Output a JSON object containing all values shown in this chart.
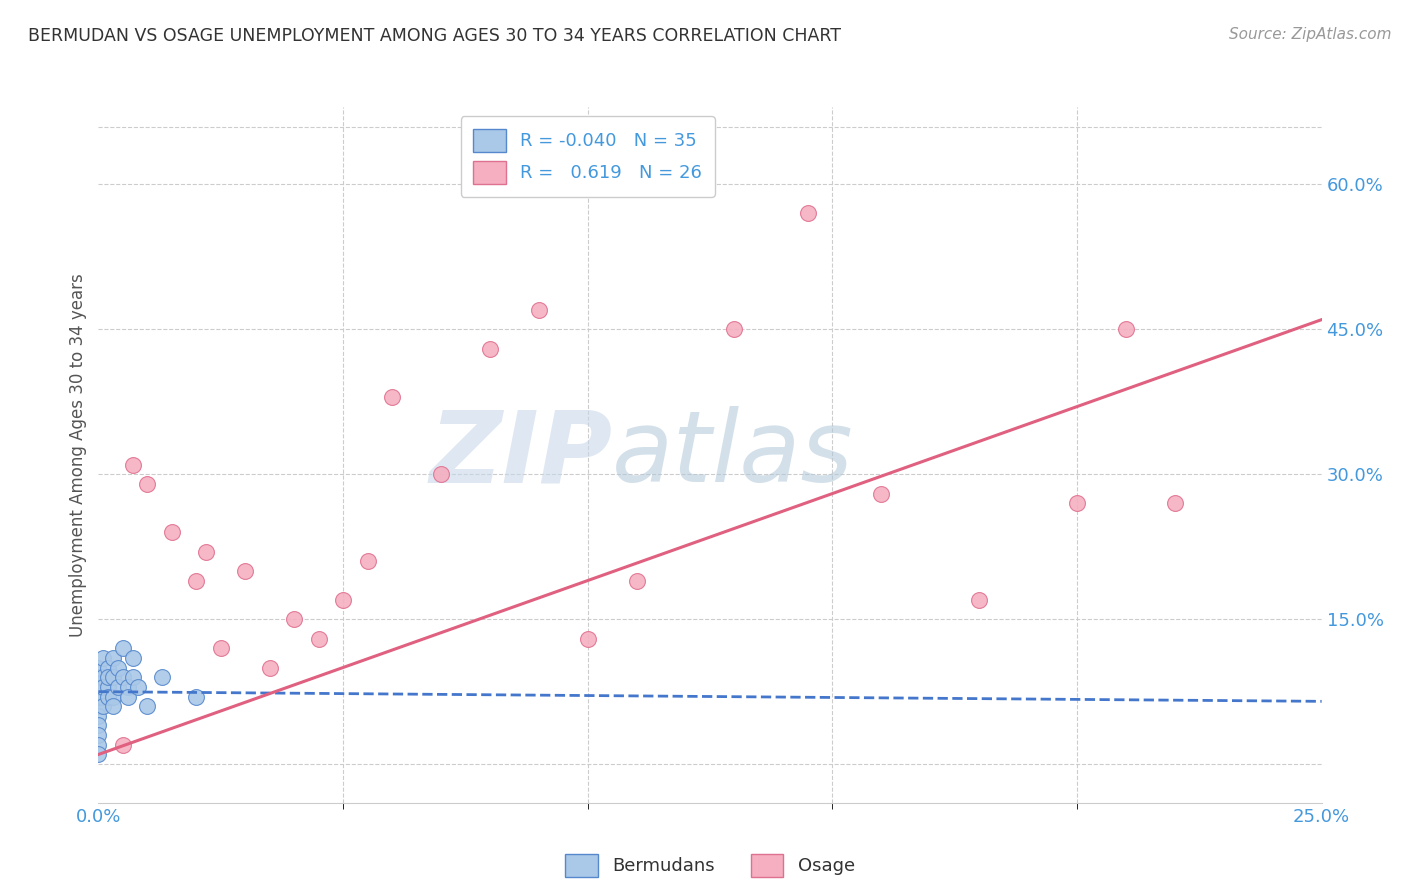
{
  "title": "BERMUDAN VS OSAGE UNEMPLOYMENT AMONG AGES 30 TO 34 YEARS CORRELATION CHART",
  "source": "Source: ZipAtlas.com",
  "ylabel": "Unemployment Among Ages 30 to 34 years",
  "xlim": [
    0.0,
    0.25
  ],
  "ylim": [
    -0.04,
    0.68
  ],
  "xticks": [
    0.0,
    0.25
  ],
  "xticks_minor": [
    0.05,
    0.1,
    0.15,
    0.2
  ],
  "yticks_right": [
    0.15,
    0.3,
    0.45,
    0.6
  ],
  "watermark_zip": "ZIP",
  "watermark_atlas": "atlas",
  "legend_r_blue": "-0.040",
  "legend_n_blue": "35",
  "legend_r_pink": "0.619",
  "legend_n_pink": "26",
  "blue_scatter_color": "#aac8e8",
  "pink_scatter_color": "#f5afc0",
  "blue_edge_color": "#5588cc",
  "pink_edge_color": "#e07090",
  "blue_line_color": "#4477cc",
  "pink_line_color": "#e06080",
  "axis_tick_color": "#4499dd",
  "title_color": "#333333",
  "bermudans_x": [
    0.0,
    0.0,
    0.0,
    0.0,
    0.0,
    0.0,
    0.0,
    0.0,
    0.0,
    0.0,
    0.001,
    0.001,
    0.001,
    0.001,
    0.001,
    0.002,
    0.002,
    0.002,
    0.002,
    0.003,
    0.003,
    0.003,
    0.003,
    0.004,
    0.004,
    0.005,
    0.005,
    0.006,
    0.006,
    0.007,
    0.007,
    0.008,
    0.01,
    0.013,
    0.02
  ],
  "bermudans_y": [
    0.06,
    0.07,
    0.05,
    0.04,
    0.08,
    0.03,
    0.09,
    0.1,
    0.02,
    0.01,
    0.07,
    0.09,
    0.06,
    0.08,
    0.11,
    0.08,
    0.1,
    0.07,
    0.09,
    0.09,
    0.11,
    0.07,
    0.06,
    0.08,
    0.1,
    0.09,
    0.12,
    0.08,
    0.07,
    0.09,
    0.11,
    0.08,
    0.06,
    0.09,
    0.07
  ],
  "osage_x": [
    0.005,
    0.007,
    0.01,
    0.015,
    0.02,
    0.022,
    0.025,
    0.03,
    0.035,
    0.04,
    0.045,
    0.05,
    0.055,
    0.06,
    0.07,
    0.08,
    0.09,
    0.1,
    0.11,
    0.13,
    0.145,
    0.16,
    0.18,
    0.2,
    0.21,
    0.22
  ],
  "osage_y": [
    0.02,
    0.31,
    0.29,
    0.24,
    0.19,
    0.22,
    0.12,
    0.2,
    0.1,
    0.15,
    0.13,
    0.17,
    0.21,
    0.38,
    0.3,
    0.43,
    0.47,
    0.13,
    0.19,
    0.45,
    0.57,
    0.28,
    0.17,
    0.27,
    0.45,
    0.27
  ],
  "blue_trend_x": [
    0.0,
    0.25
  ],
  "blue_trend_y": [
    0.075,
    0.065
  ],
  "pink_trend_x": [
    0.0,
    0.25
  ],
  "pink_trend_y": [
    0.01,
    0.46
  ]
}
